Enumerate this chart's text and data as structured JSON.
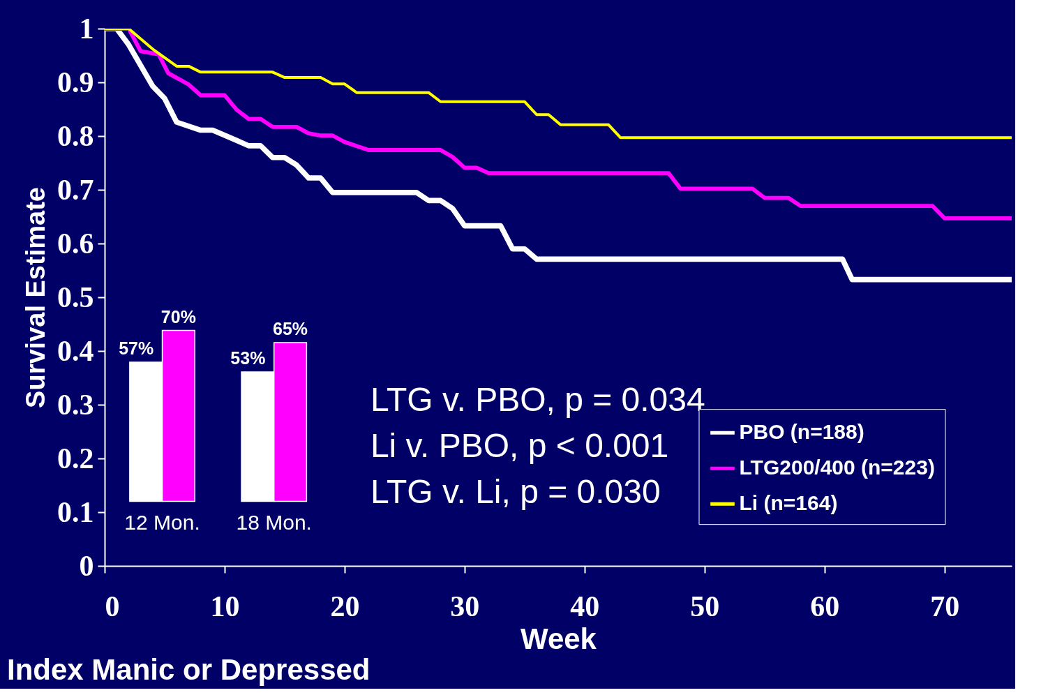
{
  "chart_data": [
    {
      "type": "line",
      "title": "Index Manic or Depressed",
      "xlabel": "Week",
      "ylabel": "Survival Estimate",
      "xlim": [
        0,
        75.6
      ],
      "xticks": [
        0,
        10,
        20,
        30,
        40,
        50,
        60,
        70
      ],
      "ylim": [
        0,
        1
      ],
      "yticks": [
        0,
        0.1,
        0.2,
        0.3,
        0.4,
        0.5,
        0.6,
        0.7,
        0.8,
        0.9,
        1
      ],
      "legend": "bottom right",
      "annotations": [
        "LTG v. PBO, p = 0.034",
        "Li v. PBO, p < 0.001",
        "LTG v. Li, p = 0.030"
      ],
      "series": [
        {
          "name": "PBO (n=188)",
          "color": "#ffffff",
          "x": [
            0,
            1,
            2,
            4,
            5,
            6,
            8,
            9,
            11,
            12,
            13,
            14,
            15,
            16,
            17,
            18,
            19,
            26,
            27,
            28,
            29,
            30,
            33,
            34,
            35,
            36,
            61.5,
            62.3,
            75.6
          ],
          "values": [
            1,
            1,
            0.97,
            0.893,
            0.87,
            0.826,
            0.811,
            0.811,
            0.792,
            0.782,
            0.782,
            0.76,
            0.76,
            0.746,
            0.722,
            0.722,
            0.695,
            0.695,
            0.68,
            0.68,
            0.665,
            0.633,
            0.633,
            0.59,
            0.59,
            0.571,
            0.571,
            0.533,
            0.533
          ]
        },
        {
          "name": "LTG200/400 (n=223)",
          "color": "#ff00ff",
          "x": [
            0,
            2,
            3,
            4.5,
            5.3,
            7,
            8,
            10,
            11,
            12,
            13,
            14,
            16,
            17,
            18,
            19,
            20,
            22,
            28,
            29,
            30,
            31,
            32,
            47,
            48,
            54,
            55,
            57,
            58,
            69,
            70,
            75.6
          ],
          "values": [
            1,
            1,
            0.958,
            0.952,
            0.917,
            0.896,
            0.876,
            0.876,
            0.849,
            0.832,
            0.832,
            0.817,
            0.817,
            0.805,
            0.801,
            0.801,
            0.789,
            0.774,
            0.774,
            0.761,
            0.741,
            0.741,
            0.731,
            0.731,
            0.702,
            0.702,
            0.685,
            0.685,
            0.67,
            0.67,
            0.647,
            0.647
          ]
        },
        {
          "name": "Li (n=164)",
          "color": "#ffff00",
          "x": [
            0,
            2,
            4,
            6,
            7,
            8,
            14,
            15,
            18,
            19,
            20,
            21,
            27,
            28,
            35,
            36,
            37,
            38,
            42,
            43,
            75.6
          ],
          "values": [
            1,
            1,
            0.962,
            0.93,
            0.93,
            0.919,
            0.919,
            0.909,
            0.909,
            0.897,
            0.897,
            0.881,
            0.881,
            0.864,
            0.864,
            0.84,
            0.84,
            0.821,
            0.821,
            0.797,
            0.797
          ]
        }
      ]
    },
    {
      "type": "bar",
      "categories": [
        "12 Mon.",
        "18 Mon."
      ],
      "series": [
        {
          "color": "#ffffff",
          "values": [
            57,
            53
          ],
          "value_labels": [
            "57%",
            "53%"
          ]
        },
        {
          "color": "#ff00ff",
          "values": [
            70,
            65
          ],
          "value_labels": [
            "70%",
            "65%"
          ]
        }
      ]
    }
  ]
}
